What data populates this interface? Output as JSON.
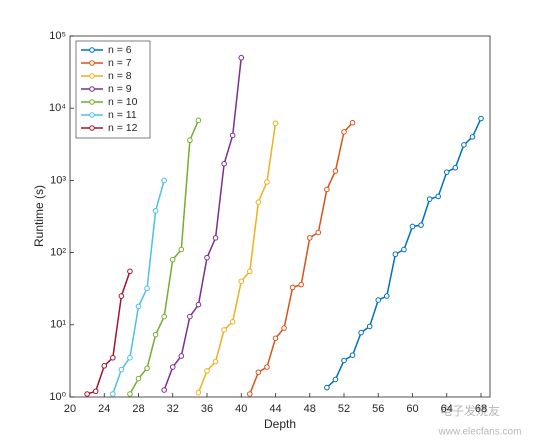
{
  "chart_data": {
    "type": "line",
    "xlabel": "Depth",
    "ylabel": "Runtime (s)",
    "xlim": [
      20,
      68
    ],
    "xticks": [
      20,
      24,
      28,
      32,
      36,
      40,
      44,
      48,
      52,
      56,
      60,
      64,
      68
    ],
    "ylim": [
      1,
      100000
    ],
    "log_y": true,
    "yticks": [
      {
        "value": 1,
        "label": "10⁰"
      },
      {
        "value": 10,
        "label": "10¹"
      },
      {
        "value": 100,
        "label": "10²"
      },
      {
        "value": 1000,
        "label": "10³"
      },
      {
        "value": 10000,
        "label": "10⁴"
      },
      {
        "value": 100000,
        "label": "10⁵"
      }
    ],
    "legend": "upper left",
    "marker": "open circle",
    "series": [
      {
        "name": "n = 6",
        "color": "#0072BD",
        "x": [
          50,
          51,
          52,
          53,
          54,
          55,
          56,
          57,
          58,
          59,
          60,
          61,
          62,
          63,
          64,
          65,
          66,
          67,
          68
        ],
        "values": [
          1.35,
          1.75,
          3.2,
          3.8,
          7.8,
          9.5,
          22,
          25,
          95,
          110,
          230,
          240,
          550,
          600,
          1300,
          1500,
          3100,
          4000,
          7200
        ]
      },
      {
        "name": "n = 7",
        "color": "#D95319",
        "x": [
          41,
          42,
          43,
          44,
          45,
          46,
          47,
          48,
          49,
          50,
          51,
          52,
          53
        ],
        "values": [
          1.1,
          2.2,
          2.6,
          6.5,
          9,
          33,
          36,
          160,
          190,
          750,
          1350,
          4700,
          6300
        ]
      },
      {
        "name": "n = 8",
        "color": "#EDB120",
        "x": [
          35,
          36,
          37,
          38,
          39,
          40,
          41,
          42,
          43,
          44
        ],
        "values": [
          1.15,
          2.3,
          3.1,
          8.5,
          11,
          40,
          55,
          500,
          950,
          6200
        ]
      },
      {
        "name": "n = 9",
        "color": "#7E2F8E",
        "x": [
          31,
          32,
          33,
          34,
          35,
          36,
          37,
          38,
          39,
          40
        ],
        "values": [
          1.25,
          2.6,
          3.7,
          13,
          19,
          85,
          160,
          1700,
          4200,
          50000
        ]
      },
      {
        "name": "n = 10",
        "color": "#77AC30",
        "x": [
          27,
          28,
          29,
          30,
          31,
          32,
          33,
          34,
          35
        ],
        "values": [
          1.1,
          1.8,
          2.5,
          7.3,
          13,
          80,
          110,
          3600,
          6800
        ]
      },
      {
        "name": "n = 11",
        "color": "#4DBEEE",
        "x": [
          25,
          26,
          27,
          28,
          29,
          30,
          31
        ],
        "values": [
          1.1,
          2.4,
          3.5,
          18,
          32,
          380,
          1000
        ]
      },
      {
        "name": "n = 12",
        "color": "#A2142F",
        "x": [
          22,
          23,
          24,
          25,
          26,
          27
        ],
        "values": [
          1.1,
          1.2,
          2.7,
          3.5,
          25,
          55
        ]
      }
    ],
    "watermark": [
      "电子发烧友",
      "www.elecfans.com"
    ]
  }
}
